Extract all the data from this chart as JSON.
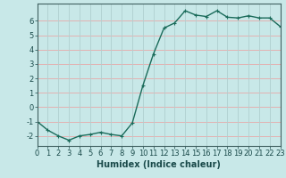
{
  "x": [
    0,
    1,
    2,
    3,
    4,
    5,
    6,
    7,
    8,
    9,
    10,
    11,
    12,
    13,
    14,
    15,
    16,
    17,
    18,
    19,
    20,
    21,
    22,
    23
  ],
  "y": [
    -1.0,
    -1.6,
    -2.0,
    -2.3,
    -2.0,
    -1.9,
    -1.75,
    -1.9,
    -2.0,
    -1.1,
    1.5,
    3.7,
    5.5,
    5.85,
    6.7,
    6.4,
    6.3,
    6.7,
    6.25,
    6.2,
    6.35,
    6.2,
    6.2,
    5.6
  ],
  "line_color": "#1a6b5a",
  "marker": "+",
  "marker_size": 3,
  "linewidth": 1.0,
  "bg_color": "#c8e8e8",
  "grid_h_color": "#e8a8a8",
  "grid_v_color": "#b0d0d0",
  "xlabel": "Humidex (Indice chaleur)",
  "xlabel_fontsize": 7,
  "tick_fontsize": 6,
  "xlim": [
    0,
    23
  ],
  "ylim": [
    -2.7,
    7.2
  ],
  "yticks": [
    -2,
    -1,
    0,
    1,
    2,
    3,
    4,
    5,
    6
  ],
  "xticks": [
    0,
    1,
    2,
    3,
    4,
    5,
    6,
    7,
    8,
    9,
    10,
    11,
    12,
    13,
    14,
    15,
    16,
    17,
    18,
    19,
    20,
    21,
    22,
    23
  ]
}
